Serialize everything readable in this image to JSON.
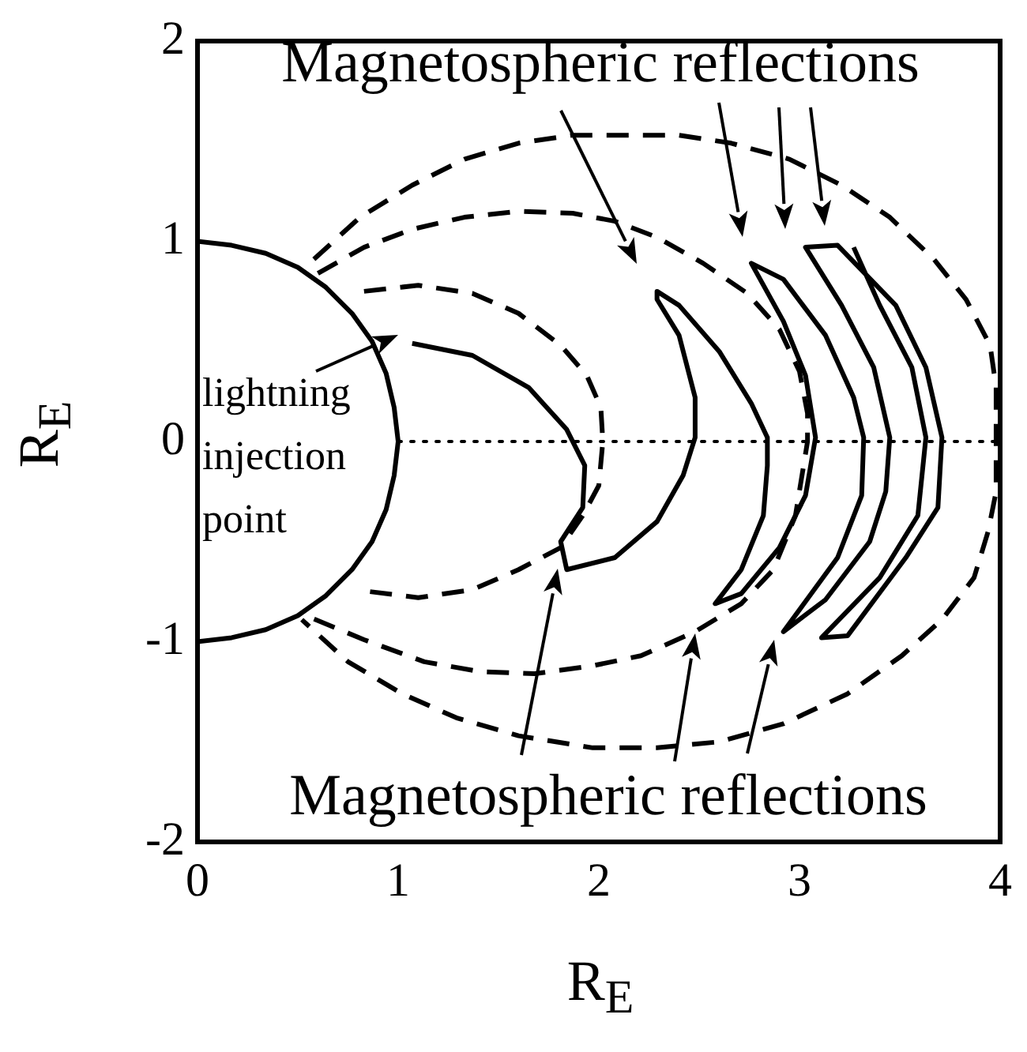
{
  "chart_data": {
    "type": "line",
    "xlabel": "R$_{E}$",
    "ylabel": "R$_{E}$",
    "xlim": [
      0,
      4
    ],
    "ylim": [
      -2,
      2
    ],
    "xticks": [
      0,
      1,
      2,
      3,
      4
    ],
    "yticks": [
      -2,
      -1,
      0,
      1,
      2
    ],
    "marker": "none",
    "annotations": [
      "Magnetospheric reflections",
      "lightning injection point",
      "Magnetospheric reflections"
    ],
    "series": [
      {
        "color": "#000000",
        "line_style": "solid",
        "x": [
          0,
          0.17,
          0.34,
          0.5,
          0.64,
          0.77,
          0.87,
          0.94,
          0.98,
          1,
          0.98,
          0.94,
          0.87,
          0.77,
          0.64,
          0.5,
          0.34,
          0.17,
          0
        ],
        "values": [
          1,
          0.98,
          0.94,
          0.87,
          0.77,
          0.64,
          0.5,
          0.34,
          0.17,
          0,
          -0.17,
          -0.34,
          -0.5,
          -0.64,
          -0.77,
          -0.87,
          -0.94,
          -0.98,
          -1
        ]
      },
      {
        "color": "#000000",
        "line_style": "dotted",
        "x": [
          1,
          4
        ],
        "values": [
          0,
          0
        ]
      },
      {
        "color": "#000000",
        "line_style": "dashed",
        "x": [
          0.83,
          1.1,
          1.37,
          1.6,
          1.81,
          1.94,
          2.01,
          2.02,
          2.0,
          1.92,
          1.81,
          1.6,
          1.37,
          1.1,
          0.86
        ],
        "values": [
          0.75,
          0.78,
          0.74,
          0.64,
          0.48,
          0.33,
          0.17,
          0.0,
          -0.22,
          -0.37,
          -0.53,
          -0.64,
          -0.74,
          -0.78,
          -0.75
        ]
      },
      {
        "color": "#000000",
        "line_style": "dashed",
        "x": [
          0.6,
          0.83,
          1.07,
          1.33,
          1.6,
          1.87,
          2.08,
          2.29,
          2.52,
          2.74,
          2.9,
          3.0,
          3.04,
          3.04,
          2.98,
          2.87,
          2.71,
          2.48,
          2.21,
          1.97,
          1.68,
          1.41,
          1.13,
          0.83,
          0.54
        ],
        "values": [
          0.84,
          0.97,
          1.06,
          1.12,
          1.15,
          1.14,
          1.1,
          1.02,
          0.89,
          0.74,
          0.56,
          0.35,
          0.14,
          0.0,
          -0.37,
          -0.64,
          -0.81,
          -0.95,
          -1.07,
          -1.12,
          -1.16,
          -1.15,
          -1.1,
          -0.99,
          -0.87
        ]
      },
      {
        "color": "#000000",
        "line_style": "dashed",
        "x": [
          0.58,
          0.81,
          1.07,
          1.33,
          1.6,
          1.87,
          2.13,
          2.4,
          2.66,
          2.95,
          3.21,
          3.45,
          3.67,
          3.83,
          3.95,
          3.98,
          3.98,
          3.98,
          3.94,
          3.87,
          3.71,
          3.51,
          3.24,
          2.92,
          2.6,
          2.29,
          1.97,
          1.6,
          1.29,
          1.02,
          0.75,
          0.52
        ],
        "values": [
          0.91,
          1.12,
          1.28,
          1.41,
          1.49,
          1.53,
          1.53,
          1.53,
          1.49,
          1.41,
          1.28,
          1.12,
          0.91,
          0.71,
          0.48,
          0.27,
          0.0,
          -0.25,
          -0.45,
          -0.68,
          -0.89,
          -1.07,
          -1.26,
          -1.41,
          -1.5,
          -1.53,
          -1.53,
          -1.47,
          -1.38,
          -1.26,
          -1.1,
          -0.89
        ]
      },
      {
        "color": "#000000",
        "line_style": "solid",
        "x": [
          1.07,
          1.37,
          1.65,
          1.84,
          1.93,
          1.92,
          1.81,
          1.84,
          2.08,
          2.29,
          2.42,
          2.48,
          2.48,
          2.4,
          2.29,
          2.29,
          2.4,
          2.6,
          2.76,
          2.84,
          2.84,
          2.82,
          2.71,
          2.58,
          2.71,
          2.9,
          3.03,
          3.08,
          3.03,
          2.92,
          2.76,
          2.92,
          3.13,
          3.27,
          3.32,
          3.31,
          3.19,
          2.92,
          3.13,
          3.35,
          3.43,
          3.45,
          3.37,
          3.21,
          3.03,
          3.19,
          3.48,
          3.63,
          3.71,
          3.69,
          3.53,
          3.24,
          3.11,
          3.4,
          3.59,
          3.63,
          3.56,
          3.4,
          3.27
        ],
        "values": [
          0.49,
          0.43,
          0.27,
          0.06,
          -0.12,
          -0.33,
          -0.5,
          -0.64,
          -0.58,
          -0.4,
          -0.17,
          0.02,
          0.22,
          0.53,
          0.71,
          0.75,
          0.68,
          0.45,
          0.19,
          0.02,
          -0.12,
          -0.37,
          -0.64,
          -0.81,
          -0.76,
          -0.53,
          -0.27,
          0.02,
          0.33,
          0.6,
          0.89,
          0.81,
          0.53,
          0.22,
          0.02,
          -0.27,
          -0.58,
          -0.95,
          -0.79,
          -0.5,
          -0.25,
          0.02,
          0.37,
          0.68,
          0.97,
          0.98,
          0.68,
          0.37,
          0.02,
          -0.33,
          -0.58,
          -0.97,
          -0.98,
          -0.68,
          -0.37,
          0.02,
          0.37,
          0.68,
          0.97
        ]
      }
    ]
  }
}
